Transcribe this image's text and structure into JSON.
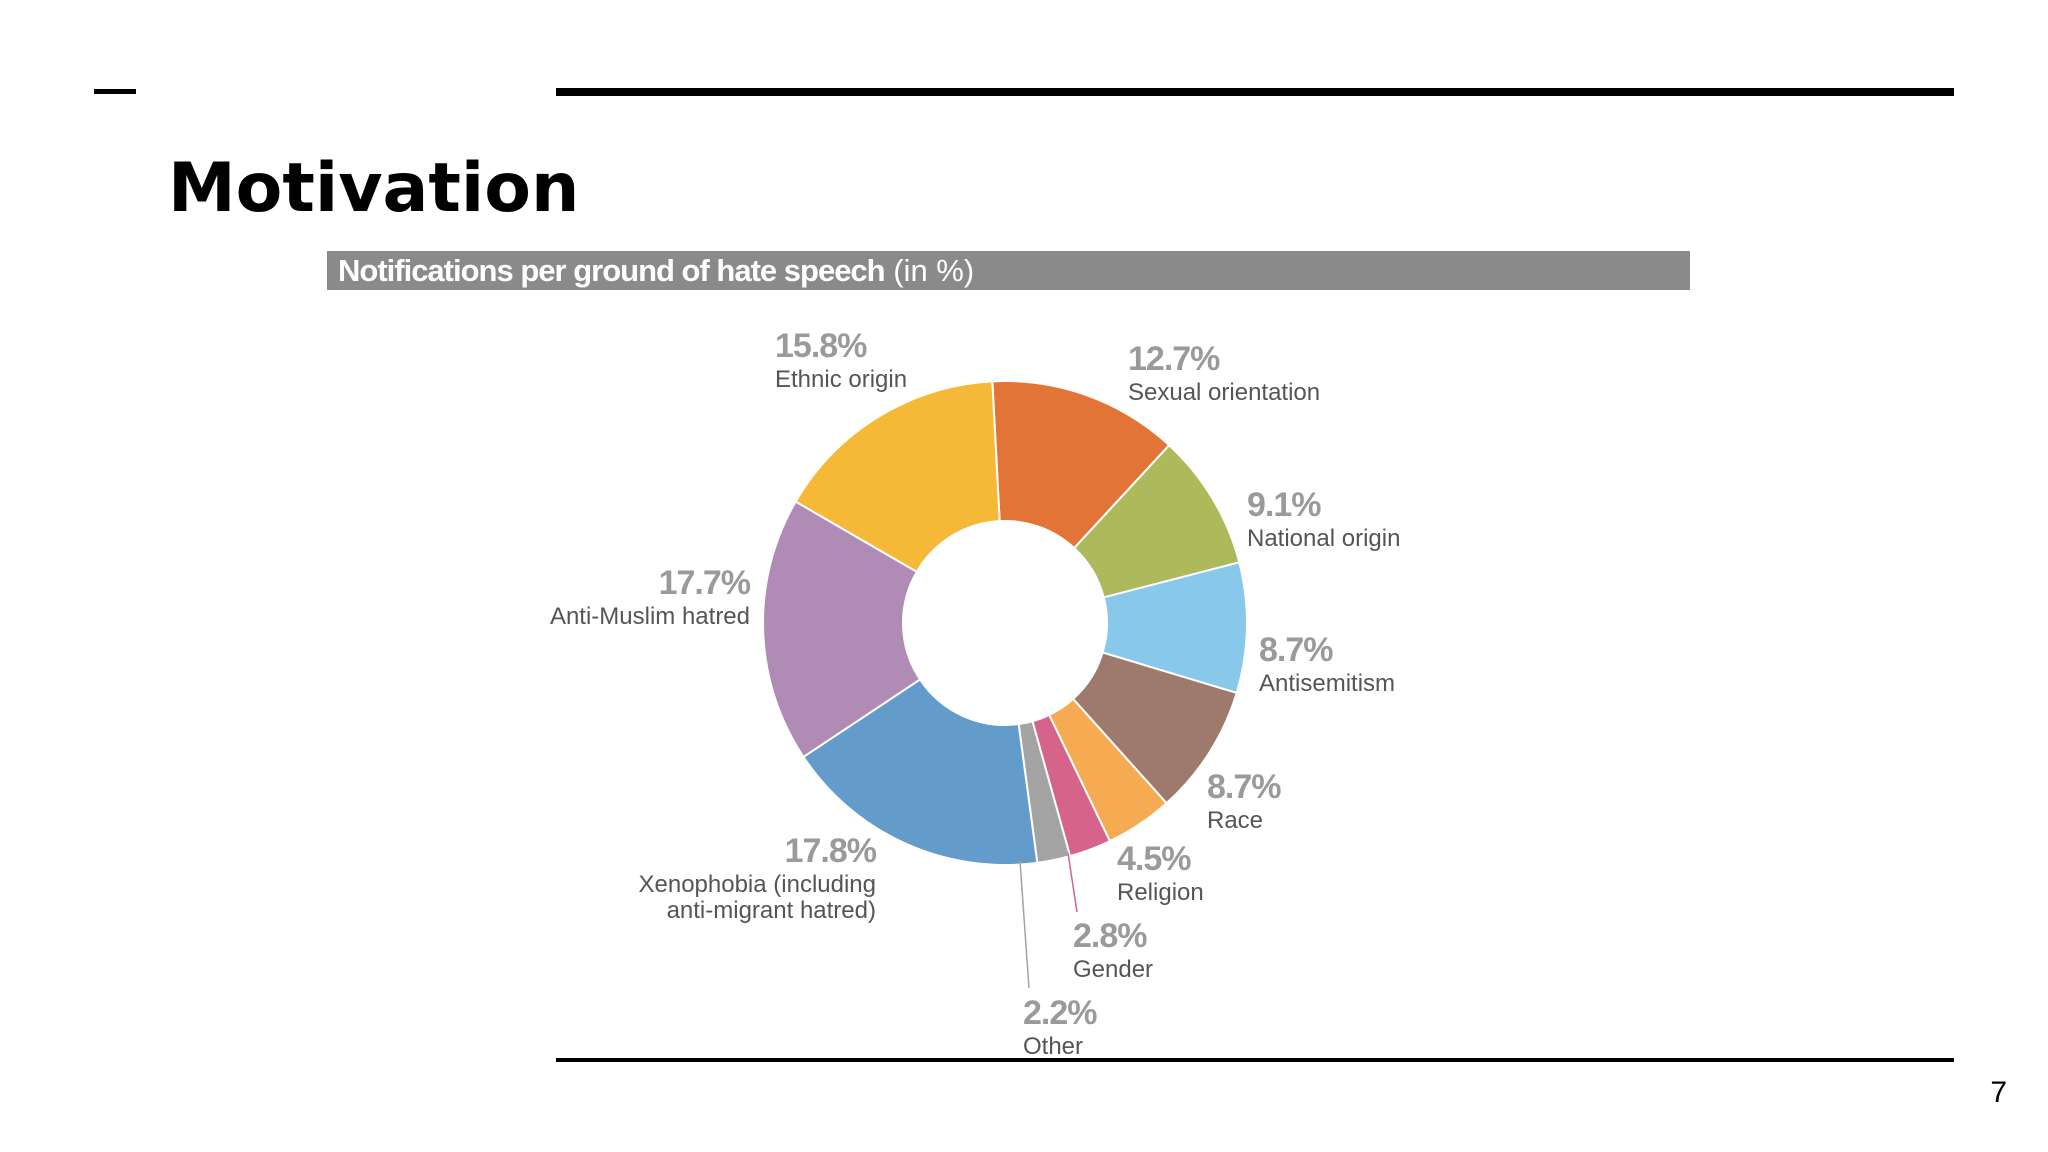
{
  "slide": {
    "title": "Motivation",
    "page_number": "7"
  },
  "chart_data": {
    "type": "pie",
    "style": "donut",
    "title": "Notifications per ground of hate speech",
    "title_unit": "(in %)",
    "slices": [
      {
        "label": "Sexual orientation",
        "value": 12.7,
        "value_label": "12.7%",
        "color": "#E37438"
      },
      {
        "label": "National origin",
        "value": 9.1,
        "value_label": "9.1%",
        "color": "#ADB95B"
      },
      {
        "label": "Antisemitism",
        "value": 8.7,
        "value_label": "8.7%",
        "color": "#88C8EA"
      },
      {
        "label": "Race",
        "value": 8.7,
        "value_label": "8.7%",
        "color": "#9D7A6C"
      },
      {
        "label": "Religion",
        "value": 4.5,
        "value_label": "4.5%",
        "color": "#F6AB52"
      },
      {
        "label": "Gender",
        "value": 2.8,
        "value_label": "2.8%",
        "color": "#D5638A"
      },
      {
        "label": "Other",
        "value": 2.2,
        "value_label": "2.2%",
        "color": "#A3A3A3"
      },
      {
        "label": "Xenophobia (including anti-migrant hatred)",
        "label_lines": [
          "Xenophobia (including",
          "anti-migrant hatred)"
        ],
        "value": 17.8,
        "value_label": "17.8%",
        "color": "#639BCB"
      },
      {
        "label": "Anti-Muslim hatred",
        "value": 17.7,
        "value_label": "17.7%",
        "color": "#B08BB6"
      },
      {
        "label": "Ethnic origin",
        "value": 15.8,
        "value_label": "15.8%",
        "color": "#F6B937"
      }
    ],
    "value_label_color": "#9a9a9a",
    "category_label_color": "#555555"
  }
}
